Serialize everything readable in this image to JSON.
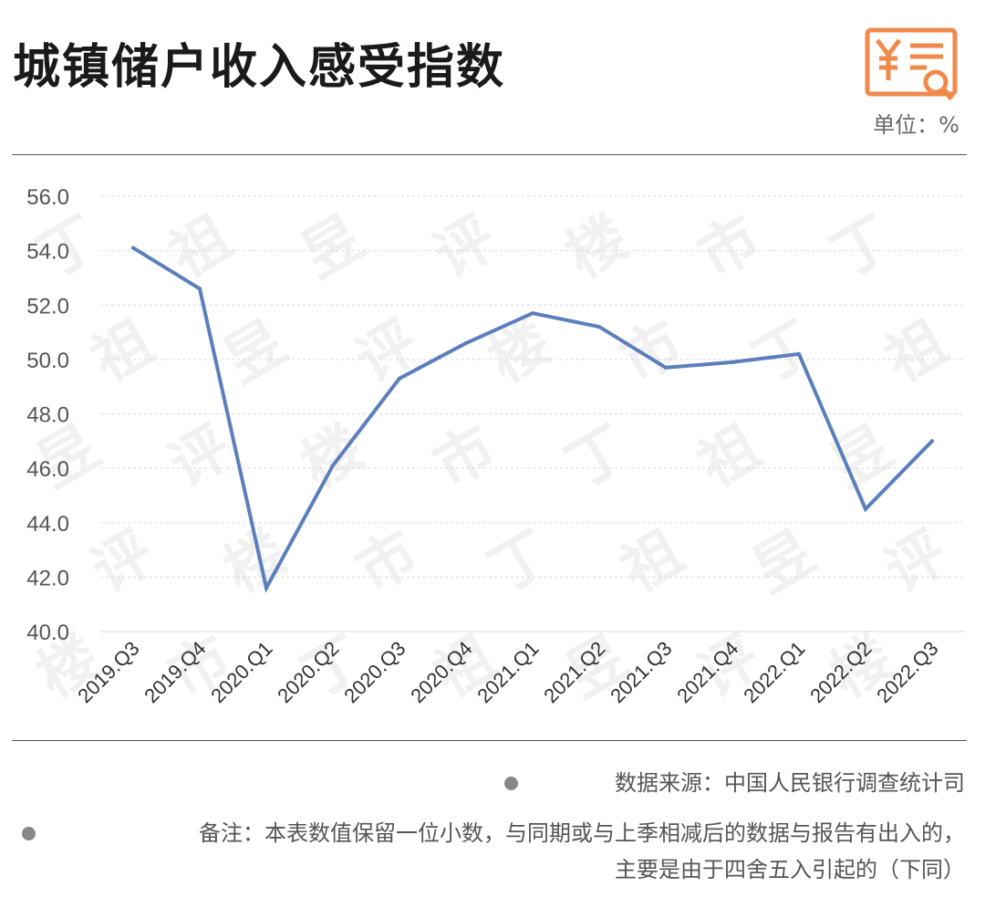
{
  "header": {
    "title": "城镇储户收入感受指数",
    "unit": "单位：%",
    "logo_icon": "yen-document-search-icon",
    "logo_color": "#f08a4b"
  },
  "watermark": {
    "chars": [
      "丁",
      "祖",
      "昱",
      "评",
      "楼",
      "市"
    ]
  },
  "footer": {
    "source": "数据来源：中国人民银行调查统计司",
    "note_line1": "备注：本表数值保留一位小数，与同期或与上季相减后的数据与报告有出入的，",
    "note_line2": "主要是由于四舍五入引起的（下同）"
  },
  "chart_data": {
    "type": "line",
    "title": "城镇储户收入感受指数",
    "xlabel": "",
    "ylabel": "",
    "unit": "%",
    "categories": [
      "2019.Q3",
      "2019.Q4",
      "2020.Q1",
      "2020.Q2",
      "2020.Q3",
      "2020.Q4",
      "2021.Q1",
      "2021.Q2",
      "2021.Q3",
      "2021.Q4",
      "2022.Q1",
      "2022.Q2",
      "2022.Q3"
    ],
    "series": [
      {
        "values": [
          54.1,
          52.6,
          41.6,
          46.1,
          49.3,
          50.6,
          51.7,
          51.2,
          49.7,
          49.9,
          50.2,
          44.5,
          47.0
        ]
      }
    ],
    "ylim": [
      40,
      56
    ],
    "yticks": [
      40,
      42,
      44,
      46,
      48,
      50,
      52,
      54,
      56
    ],
    "ytick_labels": [
      "40.0",
      "42.0",
      "44.0",
      "46.0",
      "48.0",
      "50.0",
      "52.0",
      "54.0",
      "56.0"
    ],
    "grid": true,
    "line_color": "#5b7fbd",
    "grid_color": "#d9d9d9"
  }
}
